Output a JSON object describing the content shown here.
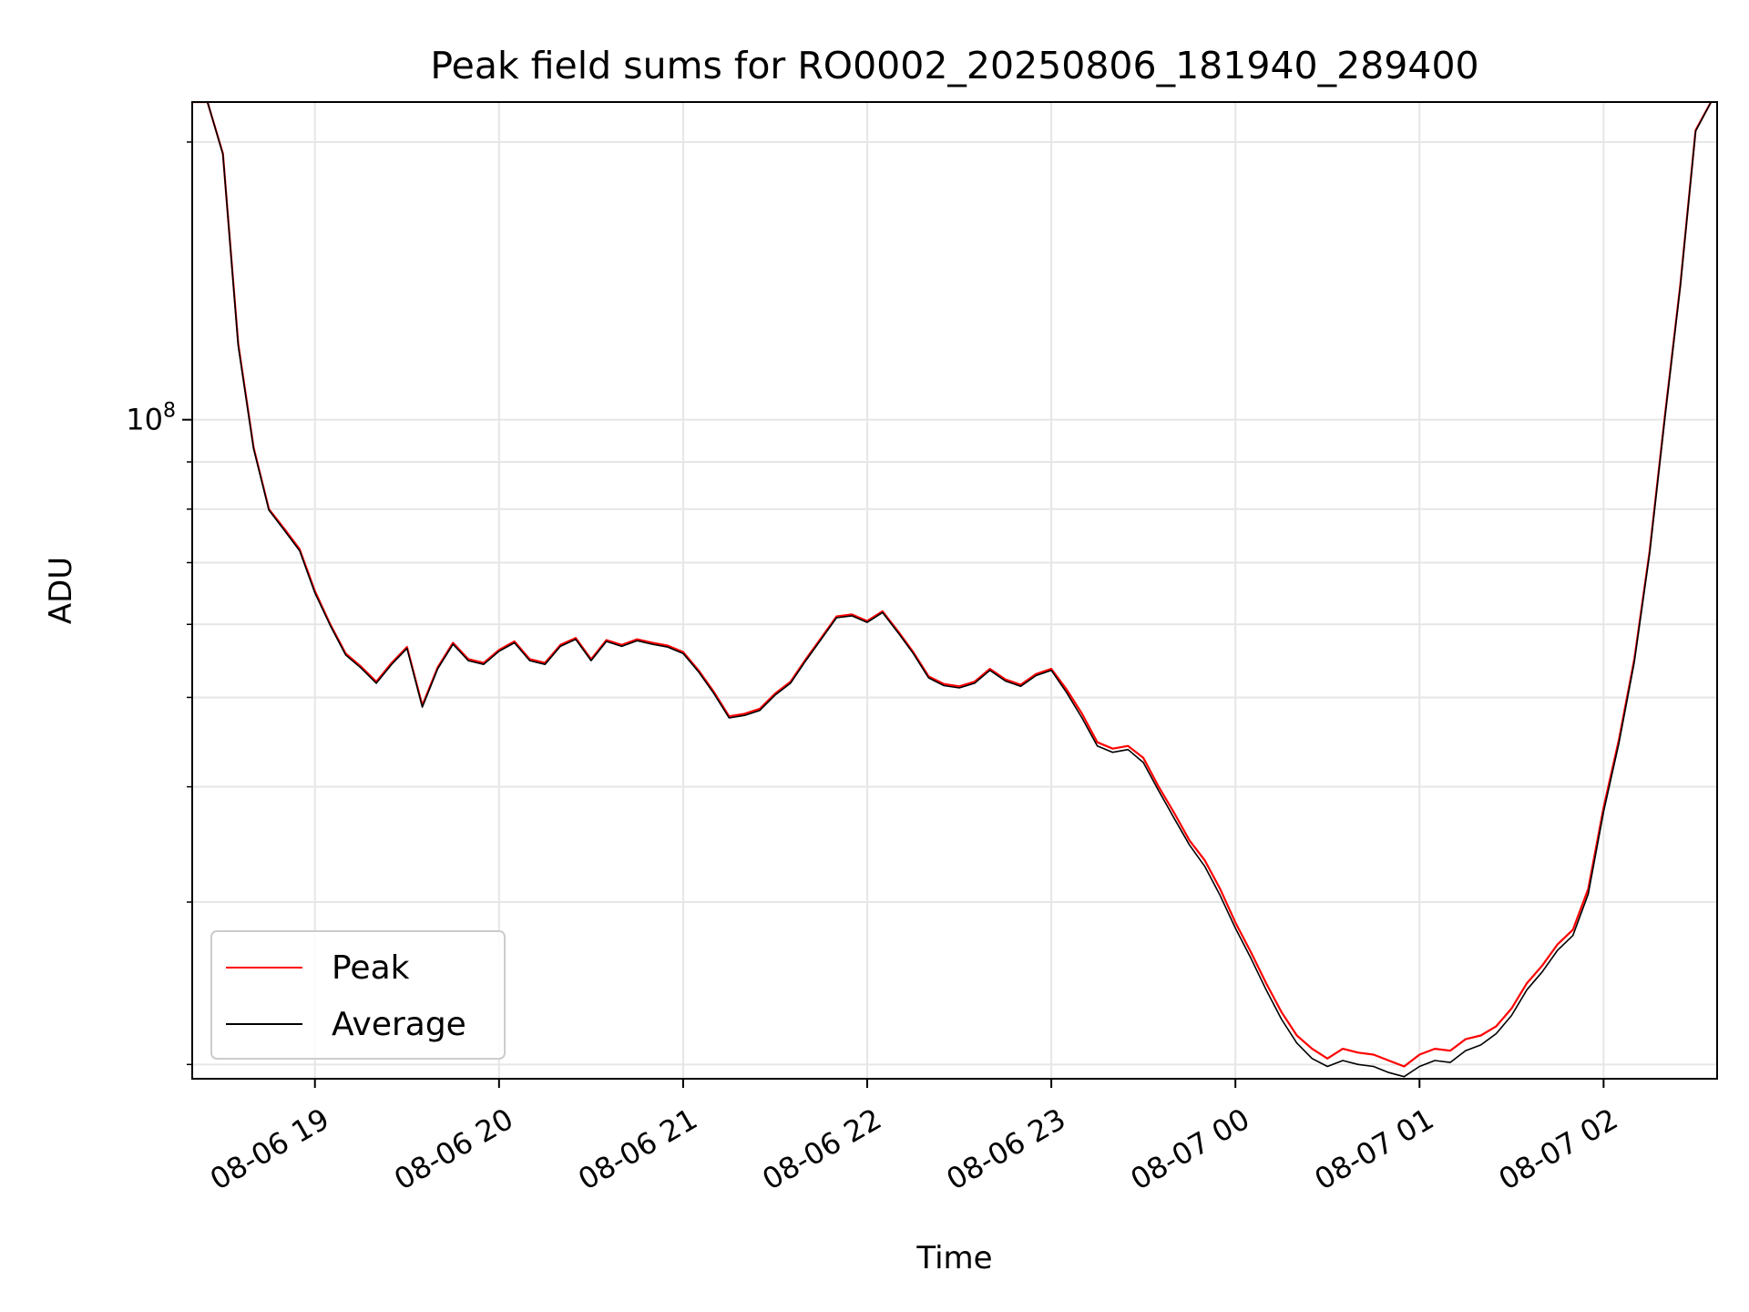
{
  "chart_data": {
    "type": "line",
    "title": "Peak field sums for RO0002_20250806_181940_289400",
    "xlabel": "Time",
    "ylabel": "ADU",
    "yscale": "log",
    "ylim": [
      19300000,
      221000000
    ],
    "xlim": [
      "2025-08-06 18:20",
      "2025-08-07 02:37"
    ],
    "x_ticks": [
      {
        "x": "2025-08-06 19:00",
        "label": "08-06 19"
      },
      {
        "x": "2025-08-06 20:00",
        "label": "08-06 20"
      },
      {
        "x": "2025-08-06 21:00",
        "label": "08-06 21"
      },
      {
        "x": "2025-08-06 22:00",
        "label": "08-06 22"
      },
      {
        "x": "2025-08-06 23:00",
        "label": "08-06 23"
      },
      {
        "x": "2025-08-07 00:00",
        "label": "08-07 00"
      },
      {
        "x": "2025-08-07 01:00",
        "label": "08-07 01"
      },
      {
        "x": "2025-08-07 02:00",
        "label": "08-07 02"
      }
    ],
    "y_tick_label": {
      "base": "10",
      "exponent": "8"
    },
    "grid": true,
    "legend_position": "lower-left",
    "x": [
      "2025-08-06 18:20",
      "2025-08-06 18:25",
      "2025-08-06 18:30",
      "2025-08-06 18:35",
      "2025-08-06 18:40",
      "2025-08-06 18:45",
      "2025-08-06 18:50",
      "2025-08-06 18:55",
      "2025-08-06 19:00",
      "2025-08-06 19:05",
      "2025-08-06 19:10",
      "2025-08-06 19:15",
      "2025-08-06 19:20",
      "2025-08-06 19:25",
      "2025-08-06 19:30",
      "2025-08-06 19:35",
      "2025-08-06 19:40",
      "2025-08-06 19:45",
      "2025-08-06 19:50",
      "2025-08-06 19:55",
      "2025-08-06 20:00",
      "2025-08-06 20:05",
      "2025-08-06 20:10",
      "2025-08-06 20:15",
      "2025-08-06 20:20",
      "2025-08-06 20:25",
      "2025-08-06 20:30",
      "2025-08-06 20:35",
      "2025-08-06 20:40",
      "2025-08-06 20:45",
      "2025-08-06 20:50",
      "2025-08-06 20:55",
      "2025-08-06 21:00",
      "2025-08-06 21:05",
      "2025-08-06 21:10",
      "2025-08-06 21:15",
      "2025-08-06 21:20",
      "2025-08-06 21:25",
      "2025-08-06 21:30",
      "2025-08-06 21:35",
      "2025-08-06 21:40",
      "2025-08-06 21:45",
      "2025-08-06 21:50",
      "2025-08-06 21:55",
      "2025-08-06 22:00",
      "2025-08-06 22:05",
      "2025-08-06 22:10",
      "2025-08-06 22:15",
      "2025-08-06 22:20",
      "2025-08-06 22:25",
      "2025-08-06 22:30",
      "2025-08-06 22:35",
      "2025-08-06 22:40",
      "2025-08-06 22:45",
      "2025-08-06 22:50",
      "2025-08-06 22:55",
      "2025-08-06 23:00",
      "2025-08-06 23:05",
      "2025-08-06 23:10",
      "2025-08-06 23:15",
      "2025-08-06 23:20",
      "2025-08-06 23:25",
      "2025-08-06 23:30",
      "2025-08-06 23:35",
      "2025-08-06 23:40",
      "2025-08-06 23:45",
      "2025-08-06 23:50",
      "2025-08-06 23:55",
      "2025-08-07 00:00",
      "2025-08-07 00:05",
      "2025-08-07 00:10",
      "2025-08-07 00:15",
      "2025-08-07 00:20",
      "2025-08-07 00:25",
      "2025-08-07 00:30",
      "2025-08-07 00:35",
      "2025-08-07 00:40",
      "2025-08-07 00:45",
      "2025-08-07 00:50",
      "2025-08-07 00:55",
      "2025-08-07 01:00",
      "2025-08-07 01:05",
      "2025-08-07 01:10",
      "2025-08-07 01:15",
      "2025-08-07 01:20",
      "2025-08-07 01:25",
      "2025-08-07 01:30",
      "2025-08-07 01:35",
      "2025-08-07 01:40",
      "2025-08-07 01:45",
      "2025-08-07 01:50",
      "2025-08-07 01:55",
      "2025-08-07 02:00",
      "2025-08-07 02:05",
      "2025-08-07 02:10",
      "2025-08-07 02:15",
      "2025-08-07 02:20",
      "2025-08-07 02:25",
      "2025-08-07 02:30",
      "2025-08-07 02:35"
    ],
    "series": [
      {
        "name": "Peak",
        "color": "#ff0000",
        "values": [
          221000000,
          221000000,
          194300000,
          120900000,
          93300000,
          80000000,
          76200000,
          72400000,
          65200000,
          60000000,
          55800000,
          54000000,
          52000000,
          54500000,
          56700000,
          49000000,
          53900000,
          57300000,
          55000000,
          54500000,
          56300000,
          57500000,
          55000000,
          54500000,
          57000000,
          58000000,
          55000000,
          57700000,
          57000000,
          57800000,
          57300000,
          56900000,
          56000000,
          53500000,
          50700000,
          47700000,
          48000000,
          48600000,
          50500000,
          52000000,
          55000000,
          58000000,
          61200000,
          61500000,
          60500000,
          62000000,
          59000000,
          56000000,
          52700000,
          51700000,
          51400000,
          52000000,
          53700000,
          52300000,
          51600000,
          53000000,
          53700000,
          51000000,
          48000000,
          44700000,
          44000000,
          44300000,
          43000000,
          40000000,
          37500000,
          35000000,
          33300000,
          31000000,
          28500000,
          26500000,
          24500000,
          22800000,
          21500000,
          20800000,
          20300000,
          20800000,
          20600000,
          20500000,
          20200000,
          19900000,
          20500000,
          20800000,
          20700000,
          21300000,
          21500000,
          22000000,
          23000000,
          24500000,
          25600000,
          27000000,
          28000000,
          31000000,
          38000000,
          45000000,
          55000000,
          72000000,
          101000000,
          140000000,
          206000000,
          221000000
        ]
      },
      {
        "name": "Average",
        "color": "#000000",
        "values": [
          221000000,
          221000000,
          194000000,
          120300000,
          93000000,
          79800000,
          75900000,
          72100000,
          64900000,
          59800000,
          55600000,
          53800000,
          51800000,
          54300000,
          56500000,
          48800000,
          53700000,
          57100000,
          54800000,
          54300000,
          56100000,
          57300000,
          54800000,
          54300000,
          56800000,
          57800000,
          54800000,
          57500000,
          56800000,
          57600000,
          57100000,
          56700000,
          55800000,
          53300000,
          50500000,
          47500000,
          47800000,
          48400000,
          50300000,
          51800000,
          54800000,
          57800000,
          61000000,
          61300000,
          60300000,
          61800000,
          58800000,
          55800000,
          52500000,
          51500000,
          51200000,
          51800000,
          53500000,
          52100000,
          51400000,
          52800000,
          53500000,
          50600000,
          47500000,
          44300000,
          43600000,
          43900000,
          42500000,
          39600000,
          37000000,
          34600000,
          32800000,
          30500000,
          28100000,
          26100000,
          24100000,
          22400000,
          21100000,
          20300000,
          19900000,
          20200000,
          20000000,
          19900000,
          19600000,
          19400000,
          19900000,
          20200000,
          20100000,
          20700000,
          21000000,
          21600000,
          22600000,
          24100000,
          25200000,
          26600000,
          27600000,
          30600000,
          37600000,
          44600000,
          54600000,
          71600000,
          100500000,
          139500000,
          205500000,
          221000000
        ]
      }
    ]
  }
}
